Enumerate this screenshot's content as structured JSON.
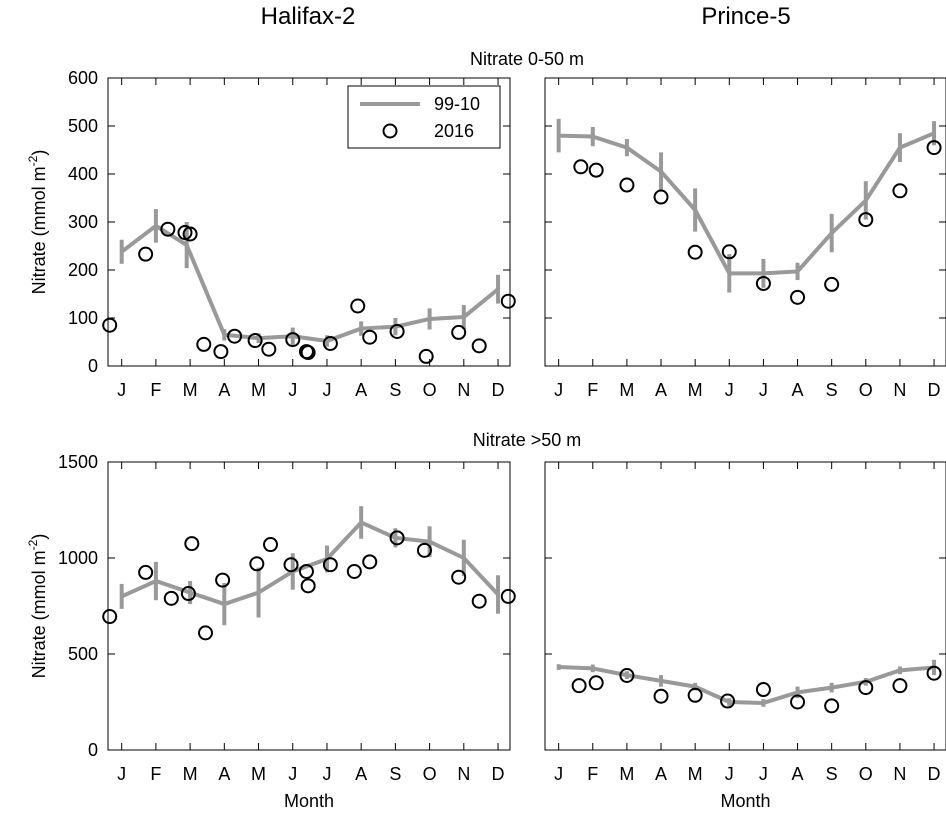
{
  "figure": {
    "column_titles": [
      "Halifax-2",
      "Prince-5"
    ],
    "row_titles": [
      "Nitrate 0-50 m",
      "Nitrate >50 m"
    ],
    "legend": {
      "series_climatology": "99-10",
      "series_observed": "2016"
    }
  },
  "chart_data": [
    {
      "type": "line",
      "id": "halifax-upper",
      "row": 0,
      "col": 0,
      "ylabel": "Nitrate (mmol m",
      "ylabel_sup": "-2",
      "ylabel_close": ")",
      "xlabel": "",
      "x_categories": [
        "J",
        "F",
        "M",
        "A",
        "M",
        "J",
        "J",
        "A",
        "S",
        "O",
        "N",
        "D"
      ],
      "xlim": [
        0.6,
        12.35
      ],
      "ylim": [
        0,
        600
      ],
      "yticks": [
        0,
        100,
        200,
        300,
        400,
        500,
        600
      ],
      "show_yticklabels": true,
      "legend": true,
      "legend_position": "top-right",
      "series": [
        {
          "name": "99-10",
          "style": "line-with-errorbars",
          "color": "#999999",
          "x": [
            1,
            2,
            2.9,
            4,
            5,
            6,
            7,
            8,
            9,
            10,
            11,
            12
          ],
          "y": [
            238,
            292,
            252,
            65,
            58,
            62,
            52,
            78,
            82,
            98,
            102,
            160
          ],
          "err": [
            25,
            35,
            48,
            12,
            10,
            18,
            12,
            15,
            18,
            22,
            25,
            30
          ]
        },
        {
          "name": "2016",
          "style": "markers",
          "color": "#000000",
          "x": [
            0.65,
            1.7,
            2.35,
            2.85,
            3.0,
            3.4,
            3.9,
            4.3,
            4.9,
            5.3,
            6.0,
            6.4,
            6.45,
            7.1,
            7.9,
            8.25,
            9.05,
            9.9,
            10.85,
            11.45,
            12.3
          ],
          "y": [
            85,
            233,
            285,
            278,
            275,
            45,
            30,
            62,
            53,
            35,
            55,
            30,
            28,
            47,
            125,
            60,
            72,
            20,
            70,
            42,
            135
          ]
        }
      ]
    },
    {
      "type": "line",
      "id": "prince-upper",
      "row": 0,
      "col": 1,
      "ylabel": "",
      "xlabel": "",
      "x_categories": [
        "J",
        "F",
        "M",
        "A",
        "M",
        "J",
        "J",
        "A",
        "S",
        "O",
        "N",
        "D"
      ],
      "xlim": [
        0.6,
        12.35
      ],
      "ylim": [
        0,
        600
      ],
      "yticks": [
        0,
        100,
        200,
        300,
        400,
        500,
        600
      ],
      "show_yticklabels": false,
      "legend": false,
      "series": [
        {
          "name": "99-10",
          "style": "line-with-errorbars",
          "color": "#999999",
          "x": [
            1,
            2,
            3,
            4,
            5,
            6,
            7,
            8,
            9,
            10,
            11,
            12
          ],
          "y": [
            480,
            478,
            455,
            405,
            325,
            193,
            193,
            197,
            277,
            345,
            455,
            485
          ],
          "err": [
            35,
            20,
            18,
            40,
            45,
            40,
            30,
            18,
            40,
            40,
            30,
            25
          ]
        },
        {
          "name": "2016",
          "style": "markers",
          "color": "#000000",
          "x": [
            1.65,
            2.1,
            3.0,
            4.0,
            5.0,
            6.0,
            7.0,
            8.0,
            9.0,
            10.0,
            11.0,
            12.0
          ],
          "y": [
            415,
            408,
            377,
            352,
            237,
            238,
            172,
            143,
            170,
            305,
            365,
            455
          ]
        }
      ]
    },
    {
      "type": "line",
      "id": "halifax-lower",
      "row": 1,
      "col": 0,
      "ylabel": "Nitrate (mmol m",
      "ylabel_sup": "-2",
      "ylabel_close": ")",
      "xlabel": "Month",
      "x_categories": [
        "J",
        "F",
        "M",
        "A",
        "M",
        "J",
        "J",
        "A",
        "S",
        "O",
        "N",
        "D"
      ],
      "xlim": [
        0.6,
        12.35
      ],
      "ylim": [
        0,
        1500
      ],
      "yticks": [
        0,
        500,
        1000,
        1500
      ],
      "show_yticklabels": true,
      "legend": false,
      "series": [
        {
          "name": "99-10",
          "style": "line-with-errorbars",
          "color": "#999999",
          "x": [
            1,
            2,
            3,
            4,
            5,
            6,
            7,
            8,
            9,
            10,
            11,
            12
          ],
          "y": [
            800,
            880,
            820,
            760,
            820,
            930,
            995,
            1185,
            1105,
            1085,
            1000,
            810
          ],
          "err": [
            65,
            100,
            60,
            110,
            130,
            95,
            70,
            85,
            50,
            80,
            95,
            100
          ]
        },
        {
          "name": "2016",
          "style": "markers",
          "color": "#000000",
          "x": [
            0.65,
            1.7,
            2.45,
            2.95,
            3.05,
            3.45,
            3.95,
            4.95,
            5.35,
            5.95,
            6.4,
            6.45,
            7.1,
            7.8,
            8.25,
            9.05,
            9.85,
            10.85,
            11.45,
            12.3
          ],
          "y": [
            695,
            925,
            790,
            815,
            1075,
            610,
            885,
            970,
            1070,
            965,
            930,
            855,
            965,
            930,
            980,
            1105,
            1040,
            900,
            775,
            800
          ]
        }
      ]
    },
    {
      "type": "line",
      "id": "prince-lower",
      "row": 1,
      "col": 1,
      "ylabel": "",
      "xlabel": "Month",
      "x_categories": [
        "J",
        "F",
        "M",
        "A",
        "M",
        "J",
        "J",
        "A",
        "S",
        "O",
        "N",
        "D"
      ],
      "xlim": [
        0.6,
        12.35
      ],
      "ylim": [
        0,
        1500
      ],
      "yticks": [
        0,
        500,
        1000,
        1500
      ],
      "show_yticklabels": false,
      "legend": false,
      "series": [
        {
          "name": "99-10",
          "style": "line-with-errorbars",
          "color": "#999999",
          "x": [
            1,
            2,
            3,
            4,
            5,
            6,
            7,
            8,
            9,
            10,
            11,
            12
          ],
          "y": [
            432,
            425,
            390,
            360,
            330,
            250,
            245,
            300,
            325,
            355,
            415,
            430
          ],
          "err": [
            15,
            20,
            20,
            30,
            20,
            20,
            20,
            30,
            25,
            20,
            20,
            40
          ]
        },
        {
          "name": "2016",
          "style": "markers",
          "color": "#000000",
          "x": [
            1.6,
            2.1,
            3.0,
            4.0,
            5.0,
            5.95,
            7.0,
            8.0,
            9.0,
            10.0,
            11.0,
            12.0
          ],
          "y": [
            335,
            350,
            388,
            280,
            285,
            255,
            315,
            250,
            230,
            325,
            335,
            400
          ]
        }
      ]
    }
  ]
}
